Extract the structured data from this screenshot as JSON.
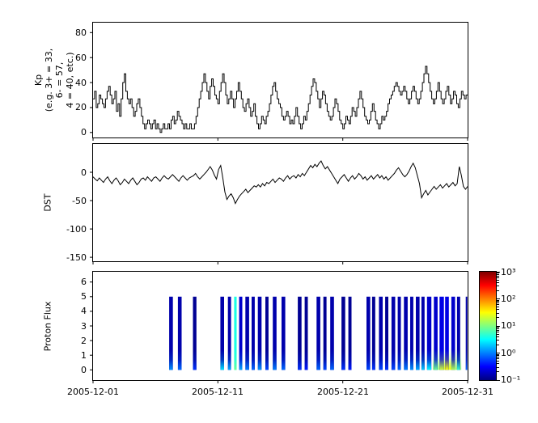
{
  "figure": {
    "xaxis": {
      "tick_labels": [
        "2005-12-01",
        "2005-12-11",
        "2005-12-21",
        "2005-12-31"
      ],
      "tick_days": [
        0,
        10,
        20,
        30
      ],
      "span_days": 30
    }
  },
  "chart_data": [
    {
      "type": "line",
      "style": "step",
      "ylabel_lines": [
        "Kp",
        "(e.g. 3+ = 33,",
        "6- = 57,",
        "4 = 40, etc.)"
      ],
      "yticks": [
        80,
        60,
        40,
        20,
        0
      ],
      "ylim": [
        -4,
        88
      ],
      "x_start": "2005-12-01",
      "points_per_day": 8,
      "values": [
        27,
        33,
        20,
        23,
        30,
        27,
        23,
        20,
        27,
        33,
        37,
        30,
        23,
        27,
        33,
        17,
        23,
        13,
        27,
        40,
        47,
        33,
        27,
        23,
        27,
        20,
        13,
        17,
        23,
        27,
        20,
        13,
        7,
        3,
        7,
        10,
        7,
        3,
        7,
        10,
        3,
        7,
        3,
        0,
        3,
        7,
        3,
        3,
        7,
        3,
        10,
        13,
        7,
        10,
        17,
        13,
        10,
        7,
        3,
        7,
        3,
        3,
        7,
        3,
        3,
        7,
        13,
        20,
        27,
        33,
        40,
        47,
        40,
        33,
        27,
        37,
        43,
        37,
        30,
        27,
        23,
        33,
        40,
        47,
        40,
        30,
        23,
        27,
        33,
        27,
        20,
        27,
        33,
        40,
        33,
        27,
        20,
        17,
        23,
        27,
        20,
        13,
        17,
        23,
        13,
        7,
        3,
        7,
        13,
        10,
        7,
        13,
        17,
        23,
        30,
        37,
        40,
        33,
        27,
        23,
        20,
        13,
        10,
        13,
        17,
        13,
        7,
        10,
        7,
        13,
        20,
        13,
        7,
        3,
        7,
        13,
        10,
        17,
        23,
        30,
        37,
        43,
        40,
        33,
        27,
        20,
        27,
        33,
        30,
        23,
        17,
        13,
        10,
        13,
        20,
        27,
        23,
        17,
        10,
        7,
        3,
        7,
        13,
        10,
        7,
        13,
        20,
        17,
        13,
        20,
        27,
        33,
        27,
        20,
        13,
        10,
        7,
        10,
        17,
        23,
        17,
        10,
        7,
        3,
        7,
        13,
        10,
        13,
        17,
        23,
        27,
        30,
        33,
        37,
        40,
        37,
        33,
        30,
        33,
        37,
        33,
        27,
        23,
        27,
        33,
        37,
        33,
        27,
        23,
        27,
        33,
        40,
        47,
        53,
        47,
        40,
        33,
        27,
        23,
        27,
        33,
        40,
        33,
        27,
        23,
        27,
        33,
        37,
        30,
        23,
        27,
        33,
        30,
        23,
        20,
        27,
        33,
        30,
        27,
        30
      ]
    },
    {
      "type": "line",
      "style": "line",
      "ylabel": "DST",
      "yticks": [
        0,
        -50,
        -100,
        -150
      ],
      "ylim": [
        -157,
        50
      ],
      "x_start": "2005-12-01",
      "points_per_day": 6,
      "values": [
        -8,
        -12,
        -15,
        -10,
        -14,
        -18,
        -12,
        -8,
        -15,
        -20,
        -14,
        -10,
        -15,
        -22,
        -18,
        -12,
        -16,
        -20,
        -14,
        -10,
        -16,
        -22,
        -18,
        -12,
        -10,
        -14,
        -8,
        -12,
        -16,
        -10,
        -8,
        -12,
        -16,
        -10,
        -6,
        -10,
        -12,
        -8,
        -4,
        -8,
        -12,
        -16,
        -10,
        -6,
        -10,
        -14,
        -10,
        -8,
        -6,
        -2,
        -8,
        -12,
        -8,
        -4,
        0,
        5,
        10,
        4,
        -5,
        -12,
        5,
        12,
        -10,
        -35,
        -48,
        -42,
        -38,
        -45,
        -55,
        -48,
        -42,
        -38,
        -34,
        -30,
        -36,
        -32,
        -28,
        -24,
        -26,
        -22,
        -26,
        -20,
        -24,
        -18,
        -20,
        -16,
        -12,
        -18,
        -14,
        -10,
        -12,
        -16,
        -10,
        -6,
        -12,
        -8,
        -6,
        -10,
        -4,
        -8,
        -2,
        -6,
        0,
        6,
        12,
        8,
        14,
        10,
        16,
        20,
        12,
        6,
        10,
        4,
        -2,
        -8,
        -14,
        -20,
        -12,
        -8,
        -4,
        -10,
        -16,
        -10,
        -6,
        -12,
        -8,
        -2,
        -6,
        -12,
        -8,
        -14,
        -10,
        -6,
        -12,
        -8,
        -4,
        -10,
        -6,
        -12,
        -8,
        -14,
        -10,
        -6,
        -2,
        4,
        8,
        2,
        -4,
        -8,
        -4,
        2,
        10,
        16,
        8,
        -6,
        -20,
        -45,
        -38,
        -32,
        -40,
        -35,
        -30,
        -25,
        -30,
        -26,
        -22,
        -28,
        -24,
        -20,
        -26,
        -22,
        -18,
        -24,
        -20,
        10,
        -5,
        -25,
        -30,
        -25
      ]
    },
    {
      "type": "heatmap",
      "ylabel": "Proton Flux",
      "yticks": [
        6,
        5,
        4,
        3,
        2,
        1,
        0
      ],
      "ylim": [
        -0.7,
        6.7
      ],
      "colormap": "jet",
      "flux_scale": "log",
      "flux_range": [
        0.1,
        1000
      ],
      "stripe_format": [
        "day_start",
        "width_days",
        "body_flux",
        "bottom_flux"
      ],
      "stripes": [
        [
          6.1,
          0.3,
          0.15,
          1.2
        ],
        [
          6.8,
          0.3,
          0.15,
          0.8
        ],
        [
          8.0,
          0.28,
          0.12,
          0.5
        ],
        [
          10.2,
          0.3,
          0.15,
          2.5
        ],
        [
          10.8,
          0.25,
          0.15,
          1.5
        ],
        [
          11.3,
          0.2,
          4,
          8
        ],
        [
          11.7,
          0.25,
          0.2,
          1.5
        ],
        [
          12.2,
          0.3,
          0.15,
          1.0
        ],
        [
          12.7,
          0.25,
          0.15,
          0.8
        ],
        [
          13.2,
          0.3,
          0.15,
          1.2
        ],
        [
          13.8,
          0.25,
          0.12,
          0.6
        ],
        [
          14.4,
          0.3,
          0.15,
          1.0
        ],
        [
          15.1,
          0.3,
          0.15,
          0.8
        ],
        [
          16.4,
          0.3,
          0.12,
          0.5
        ],
        [
          16.95,
          0.25,
          0.12,
          0.4
        ],
        [
          17.9,
          0.3,
          0.15,
          0.8
        ],
        [
          18.45,
          0.25,
          0.12,
          0.6
        ],
        [
          19.0,
          0.3,
          0.15,
          0.8
        ],
        [
          19.9,
          0.3,
          0.12,
          0.5
        ],
        [
          20.45,
          0.25,
          0.12,
          0.4
        ],
        [
          21.9,
          0.3,
          0.15,
          0.6
        ],
        [
          22.35,
          0.25,
          0.12,
          0.5
        ],
        [
          22.9,
          0.3,
          0.15,
          0.6
        ],
        [
          23.4,
          0.25,
          0.12,
          0.5
        ],
        [
          23.9,
          0.3,
          0.15,
          0.6
        ],
        [
          24.4,
          0.25,
          0.15,
          0.8
        ],
        [
          24.9,
          0.3,
          0.15,
          1.0
        ],
        [
          25.4,
          0.25,
          0.15,
          1.2
        ],
        [
          25.85,
          0.3,
          0.15,
          1.5
        ],
        [
          26.3,
          0.25,
          0.15,
          2.0
        ],
        [
          26.75,
          0.35,
          0.2,
          3.0
        ],
        [
          27.3,
          0.3,
          0.2,
          8
        ],
        [
          27.75,
          0.35,
          0.25,
          20
        ],
        [
          28.2,
          0.3,
          0.25,
          30
        ],
        [
          28.7,
          0.3,
          0.2,
          15
        ],
        [
          29.15,
          0.25,
          0.15,
          5
        ],
        [
          29.85,
          0.12,
          0.15,
          0.8
        ]
      ],
      "glow_format": [
        "day_start",
        "width_days",
        "height_y",
        "flux"
      ],
      "glows": [
        [
          27.2,
          2.3,
          1.6,
          12
        ],
        [
          27.9,
          0.9,
          1.1,
          30
        ]
      ],
      "colorbar_ticks": [
        "10³",
        "10²",
        "10¹",
        "10⁰",
        "10⁻¹"
      ]
    }
  ]
}
